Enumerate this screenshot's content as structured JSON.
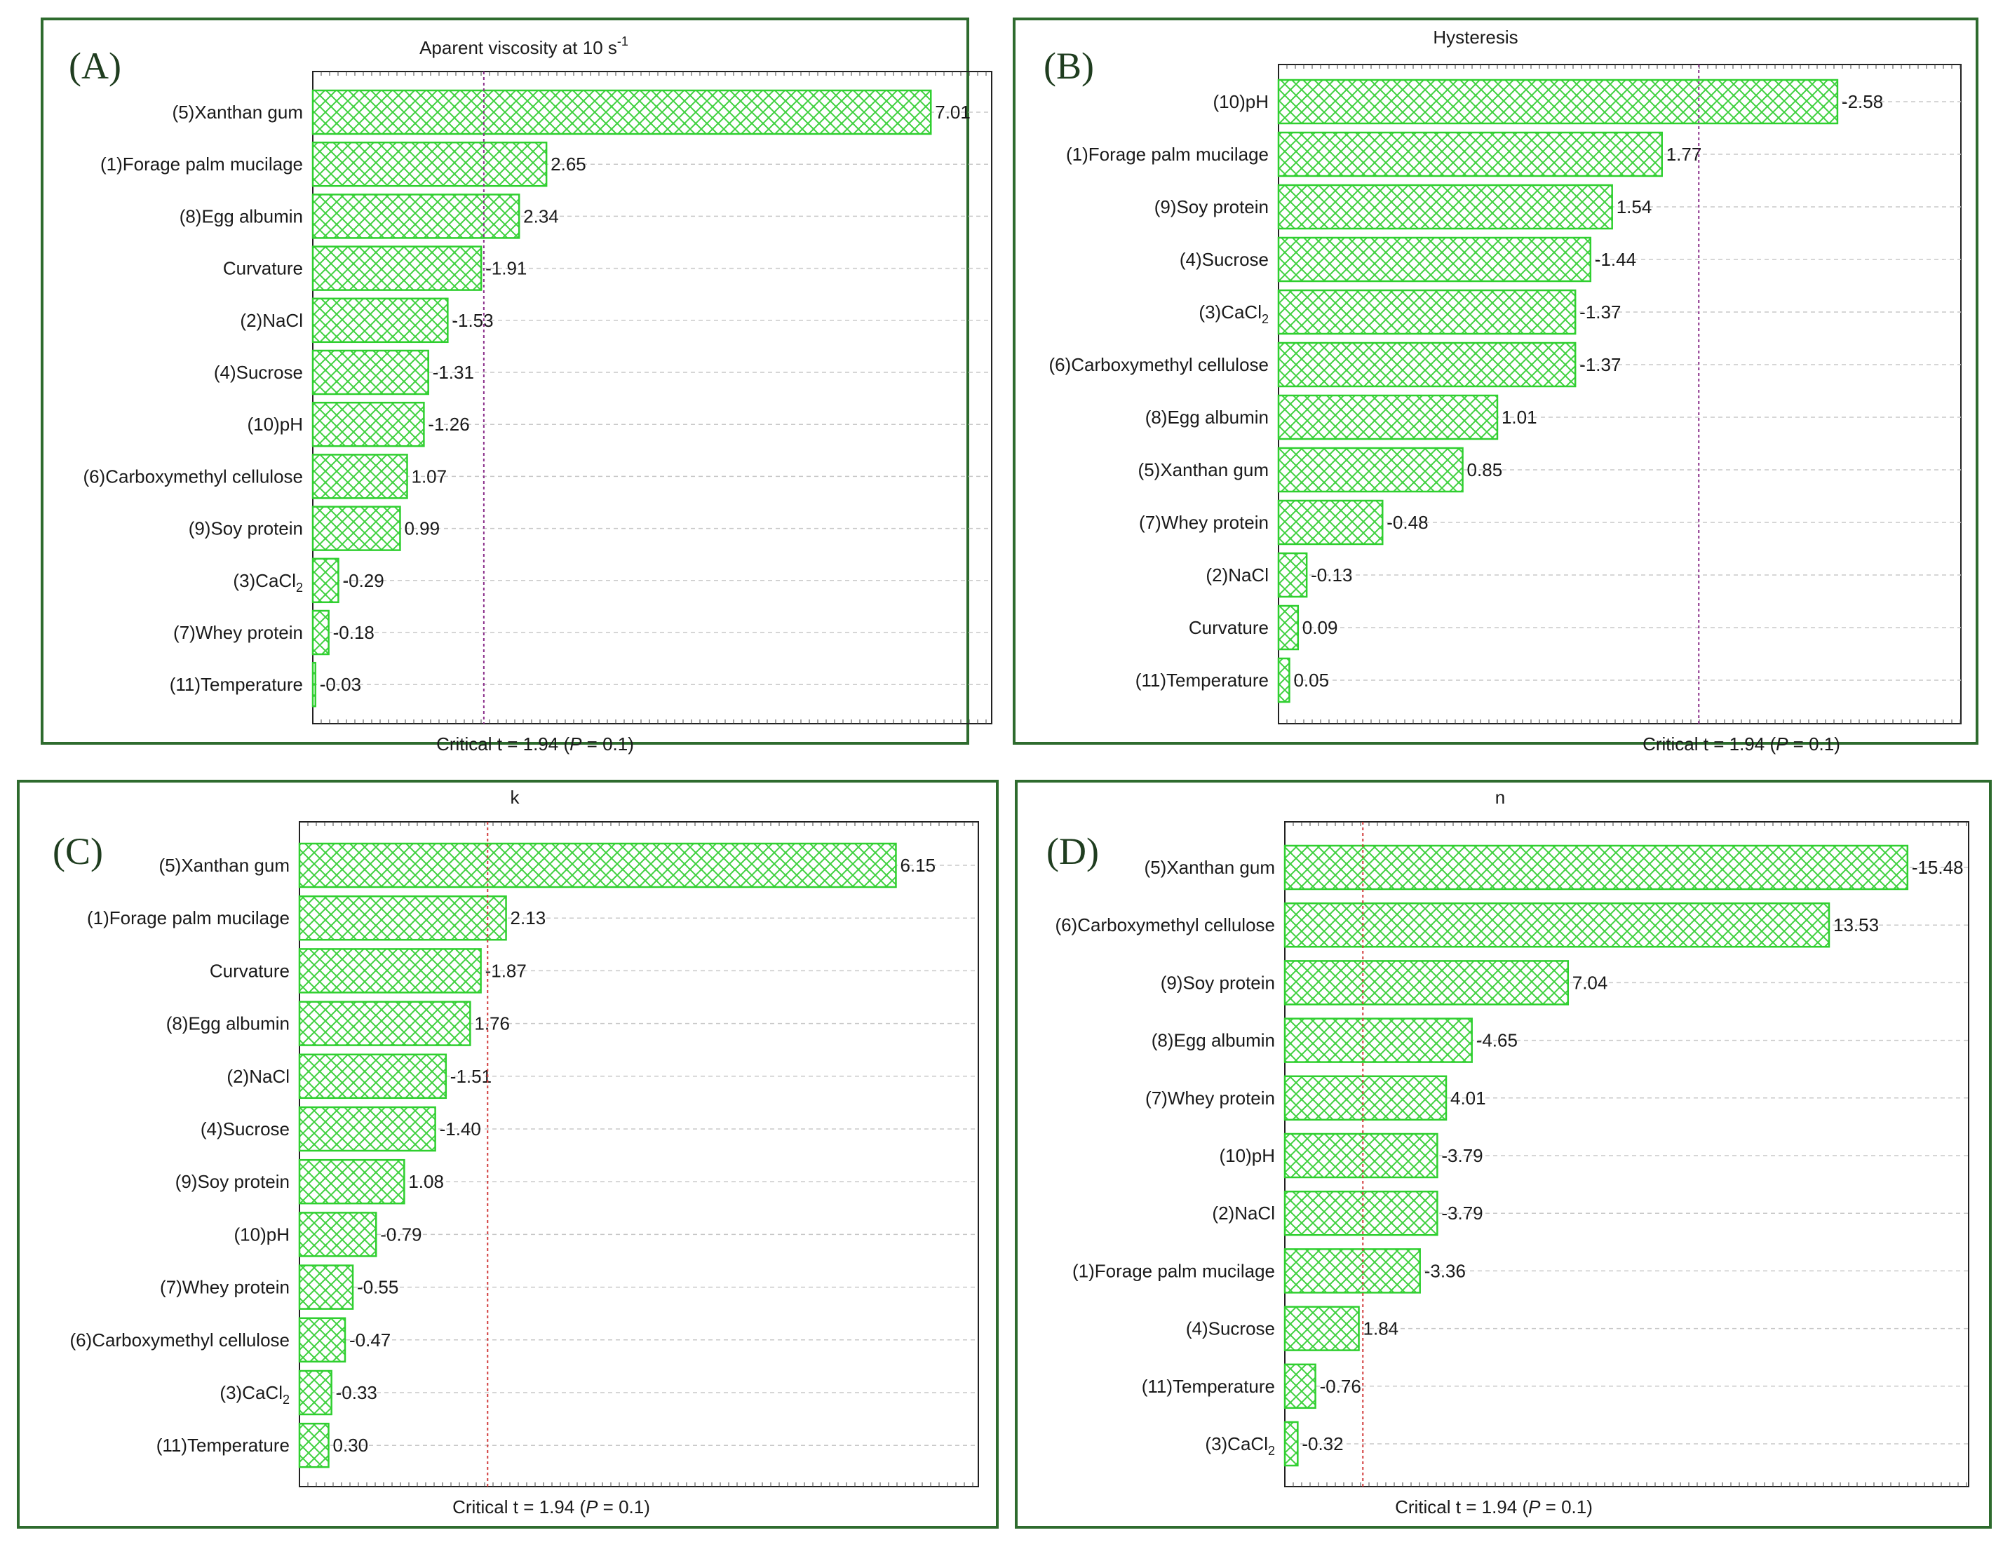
{
  "colors": {
    "frame": "#2e6b2e",
    "bar_stroke": "#2fcf2f",
    "hatch": "#3fd13f",
    "crit_line_purple": "#8b2f8b",
    "crit_line_red": "#d23c3c",
    "grid": "#c8c8c8"
  },
  "chart_data": [
    {
      "type": "bar",
      "orientation": "horizontal",
      "panel_label": "(A)",
      "title": "Aparent viscosity at 10 s",
      "title_superscript": "-1",
      "critical_text": "Critical t = 1.94 (P = 0.1)",
      "critical_t": 1.94,
      "x_range": [
        0,
        7.7
      ],
      "categories": [
        "(5)Xanthan gum",
        "(1)Forage palm mucilage",
        "(8)Egg albumin",
        "Curvature",
        "(2)NaCl",
        "(4)Sucrose",
        "(10)pH",
        "(6)Carboxymethyl cellulose",
        "(9)Soy protein",
        "(3)CaCl2",
        "(7)Whey protein",
        "(11)Temperature"
      ],
      "values": [
        7.01,
        2.65,
        2.34,
        -1.91,
        -1.53,
        -1.31,
        -1.26,
        1.07,
        0.99,
        -0.29,
        -0.18,
        -0.03
      ],
      "value_labels": [
        "7.01",
        "2.65",
        "2.34",
        "-1.91",
        "-1.53",
        "-1.31",
        "-1.26",
        "1.07",
        "0.99",
        "-0.29",
        "-0.18",
        "-0.03"
      ]
    },
    {
      "type": "bar",
      "orientation": "horizontal",
      "panel_label": "(B)",
      "title": "Hysteresis",
      "title_superscript": "",
      "critical_text": "Critical t = 1.94 (P = 0.1)",
      "critical_t": 1.94,
      "x_range": [
        0,
        3.15
      ],
      "categories": [
        "(10)pH",
        "(1)Forage palm mucilage",
        "(9)Soy protein",
        "(4)Sucrose",
        "(3)CaCl2",
        "(6)Carboxymethyl cellulose",
        "(8)Egg albumin",
        "(5)Xanthan gum",
        "(7)Whey protein",
        "(2)NaCl",
        "Curvature",
        "(11)Temperature"
      ],
      "values": [
        -2.58,
        1.77,
        1.54,
        -1.44,
        -1.37,
        -1.37,
        1.01,
        0.85,
        -0.48,
        -0.13,
        0.09,
        0.05
      ],
      "value_labels": [
        "-2.58",
        "1.77",
        "1.54",
        "-1.44",
        "-1.37",
        "-1.37",
        "1.01",
        "0.85",
        "-0.48",
        "-0.13",
        "0.09",
        "0.05"
      ]
    },
    {
      "type": "bar",
      "orientation": "horizontal",
      "panel_label": "(C)",
      "title": "k",
      "title_superscript": "",
      "critical_text": "Critical t = 1.94 (P = 0.1)",
      "critical_t": 1.94,
      "x_range": [
        0,
        7.0
      ],
      "categories": [
        "(5)Xanthan gum",
        "(1)Forage palm mucilage",
        "Curvature",
        "(8)Egg albumin",
        "(2)NaCl",
        "(4)Sucrose",
        "(9)Soy protein",
        "(10)pH",
        "(7)Whey protein",
        "(6)Carboxymethyl cellulose",
        "(3)CaCl2",
        "(11)Temperature"
      ],
      "values": [
        6.15,
        2.13,
        -1.87,
        1.76,
        -1.51,
        -1.4,
        1.08,
        -0.79,
        -0.55,
        -0.47,
        -0.33,
        0.3
      ],
      "value_labels": [
        "6.15",
        "2.13",
        "-1.87",
        "1.76",
        "-1.51",
        "-1.40",
        "1.08",
        "-0.79",
        "-0.55",
        "-0.47",
        "-0.33",
        "0.30"
      ]
    },
    {
      "type": "bar",
      "orientation": "horizontal",
      "panel_label": "(D)",
      "title": "n",
      "title_superscript": "",
      "critical_text": "Critical t = 1.94 (P = 0.1)",
      "critical_t": 1.94,
      "x_range": [
        0,
        17.0
      ],
      "categories": [
        "(5)Xanthan gum",
        "(6)Carboxymethyl cellulose",
        "(9)Soy protein",
        "(8)Egg albumin",
        "(7)Whey protein",
        "(10)pH",
        "(2)NaCl",
        "(1)Forage palm mucilage",
        "(4)Sucrose",
        "(11)Temperature",
        "(3)CaCl2"
      ],
      "values": [
        -15.48,
        13.53,
        7.04,
        -4.65,
        4.01,
        -3.79,
        -3.79,
        -3.36,
        1.84,
        -0.76,
        -0.32
      ],
      "value_labels": [
        "-15.48",
        "13.53",
        "7.04",
        "-4.65",
        "4.01",
        "-3.79",
        "-3.79",
        "-3.36",
        "1.84",
        "-0.76",
        "-0.32"
      ]
    }
  ]
}
